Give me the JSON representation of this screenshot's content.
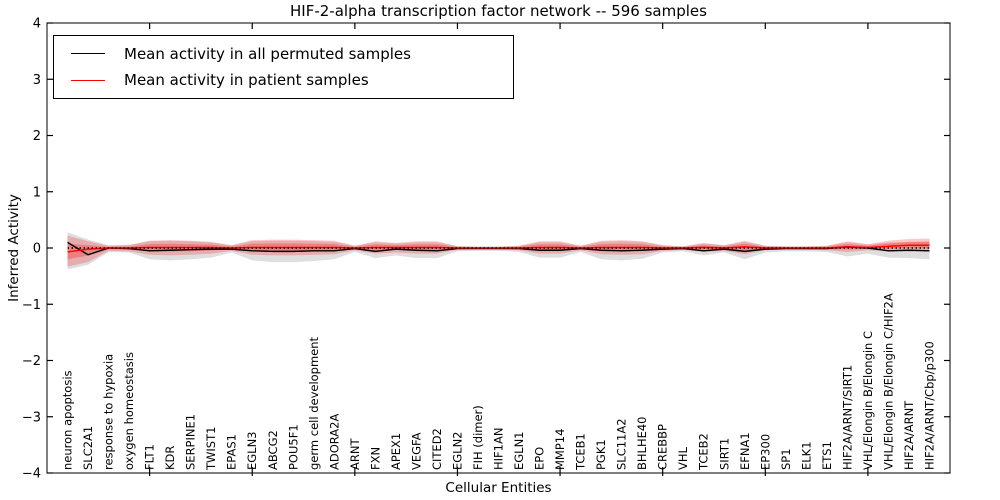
{
  "chart_data": {
    "type": "line",
    "title": "HIF-2-alpha transcription factor network -- 596 samples",
    "xlabel": "Cellular Entities",
    "ylabel": "Inferred Activity",
    "ylim": [
      -4,
      4
    ],
    "yticks": [
      -4,
      -3,
      -2,
      -1,
      0,
      1,
      2,
      3,
      4
    ],
    "ytick_labels": [
      "−4",
      "−3",
      "−2",
      "−1",
      "0",
      "1",
      "2",
      "3",
      "4"
    ],
    "xtick_minor_positions": [
      5,
      10,
      15,
      20,
      25,
      30,
      35,
      40
    ],
    "grid": false,
    "legend_position": "upper left",
    "zero_reference_line": 0,
    "colors": {
      "permuted_line": "#000000",
      "patient_line": "#ff0000",
      "permuted_band": "rgba(0,0,0,0.13)",
      "patient_band_outer": "rgba(255,0,0,0.22)",
      "patient_band_inner": "rgba(255,0,0,0.26)"
    },
    "categories": [
      "neuron apoptosis",
      "SLC2A1",
      "response to hypoxia",
      "oxygen homeostasis",
      "FLT1",
      "KDR",
      "SERPINE1",
      "TWIST1",
      "EPAS1",
      "EGLN3",
      "ABCG2",
      "POU5F1",
      "germ cell development",
      "ADORA2A",
      "ARNT",
      "FXN",
      "APEX1",
      "VEGFA",
      "CITED2",
      "EGLN2",
      "FIH (dimer)",
      "HIF1AN",
      "EGLN1",
      "EPO",
      "MMP14",
      "TCEB1",
      "PGK1",
      "SLC11A2",
      "BHLHE40",
      "CREBBP",
      "VHL",
      "TCEB2",
      "SIRT1",
      "EFNA1",
      "EP300",
      "SP1",
      "ELK1",
      "ETS1",
      "HIF2A/ARNT/SIRT1",
      "VHL/Elongin B/Elongin C",
      "VHL/Elongin B/Elongin C/HIF2A",
      "HIF2A/ARNT",
      "HIF2A/ARNT/Cbp/p300"
    ],
    "series": [
      {
        "name": "Mean activity in all permuted samples",
        "color": "#000000",
        "values": [
          0.1,
          -0.12,
          0.0,
          -0.01,
          -0.05,
          -0.04,
          -0.03,
          -0.02,
          -0.02,
          -0.05,
          -0.06,
          -0.06,
          -0.05,
          -0.05,
          -0.01,
          -0.06,
          -0.02,
          -0.04,
          -0.05,
          -0.01,
          -0.01,
          -0.01,
          -0.01,
          -0.04,
          -0.04,
          -0.01,
          -0.04,
          -0.05,
          -0.04,
          -0.02,
          -0.01,
          -0.05,
          -0.02,
          -0.06,
          -0.02,
          -0.01,
          -0.01,
          -0.01,
          0.02,
          0.0,
          -0.05,
          -0.04,
          -0.05
        ],
        "band_top": [
          0.28,
          0.15,
          0.05,
          0.06,
          0.12,
          0.13,
          0.12,
          0.1,
          0.05,
          0.12,
          0.13,
          0.13,
          0.12,
          0.11,
          0.04,
          0.1,
          0.08,
          0.1,
          0.1,
          0.04,
          0.03,
          0.03,
          0.04,
          0.1,
          0.1,
          0.04,
          0.11,
          0.12,
          0.11,
          0.05,
          0.03,
          0.08,
          0.05,
          0.11,
          0.04,
          0.03,
          0.03,
          0.04,
          0.1,
          0.06,
          0.1,
          0.11,
          0.12
        ],
        "band_bottom": [
          -0.38,
          -0.3,
          -0.07,
          -0.08,
          -0.2,
          -0.22,
          -0.2,
          -0.17,
          -0.08,
          -0.22,
          -0.25,
          -0.25,
          -0.23,
          -0.2,
          -0.07,
          -0.18,
          -0.13,
          -0.18,
          -0.18,
          -0.06,
          -0.05,
          -0.05,
          -0.07,
          -0.17,
          -0.17,
          -0.07,
          -0.2,
          -0.22,
          -0.19,
          -0.08,
          -0.06,
          -0.13,
          -0.08,
          -0.2,
          -0.08,
          -0.06,
          -0.06,
          -0.07,
          -0.15,
          -0.1,
          -0.17,
          -0.18,
          -0.2
        ]
      },
      {
        "name": "Mean activity in patient samples",
        "color": "#ff0000",
        "values": [
          -0.07,
          -0.02,
          0.0,
          0.0,
          0.01,
          0.01,
          0.01,
          0.01,
          0.0,
          0.01,
          0.01,
          0.01,
          0.01,
          0.01,
          0.0,
          0.01,
          0.01,
          0.01,
          0.01,
          0.0,
          0.0,
          0.0,
          0.0,
          0.01,
          0.01,
          0.0,
          0.01,
          0.01,
          0.01,
          0.0,
          0.0,
          0.01,
          0.0,
          0.02,
          0.0,
          0.0,
          0.0,
          0.0,
          0.02,
          0.01,
          0.03,
          0.05,
          0.05
        ],
        "band_top": [
          0.22,
          0.12,
          0.04,
          0.05,
          0.13,
          0.14,
          0.13,
          0.11,
          0.05,
          0.14,
          0.15,
          0.15,
          0.14,
          0.13,
          0.04,
          0.12,
          0.09,
          0.12,
          0.12,
          0.03,
          0.02,
          0.02,
          0.04,
          0.12,
          0.12,
          0.04,
          0.13,
          0.14,
          0.12,
          0.05,
          0.03,
          0.09,
          0.05,
          0.13,
          0.04,
          0.03,
          0.03,
          0.04,
          0.12,
          0.07,
          0.13,
          0.16,
          0.17
        ],
        "band_bottom": [
          -0.33,
          -0.25,
          -0.05,
          -0.06,
          -0.12,
          -0.13,
          -0.12,
          -0.1,
          -0.05,
          -0.12,
          -0.13,
          -0.13,
          -0.12,
          -0.11,
          -0.04,
          -0.1,
          -0.08,
          -0.1,
          -0.1,
          -0.03,
          -0.02,
          -0.02,
          -0.04,
          -0.1,
          -0.1,
          -0.04,
          -0.11,
          -0.12,
          -0.11,
          -0.05,
          -0.03,
          -0.07,
          -0.05,
          -0.11,
          -0.04,
          -0.03,
          -0.03,
          -0.04,
          -0.07,
          -0.04,
          -0.05,
          -0.05,
          -0.05
        ]
      }
    ]
  }
}
